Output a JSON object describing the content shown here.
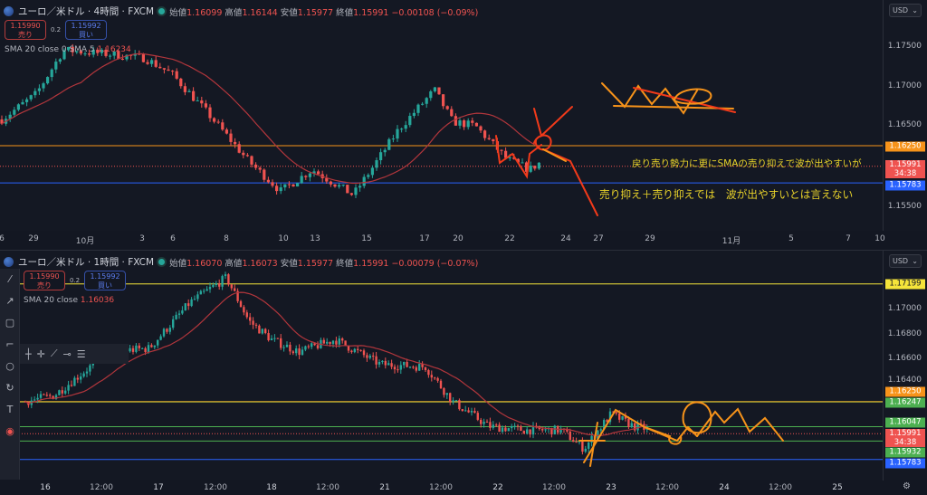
{
  "top_chart": {
    "symbol_title": "ユーロ／米ドル · 4時間 · FXCM",
    "ohlc": {
      "open_label": "始値",
      "open": "1.16099",
      "high_label": "高値",
      "high": "1.16144",
      "low_label": "安値",
      "low": "1.15977",
      "close_label": "終値",
      "close": "1.15991",
      "change": "−0.00108 (−0.09%)"
    },
    "sell": {
      "price": "1.15990",
      "label": "売り"
    },
    "spread": "0.2",
    "buy": {
      "price": "1.15992",
      "label": "買い"
    },
    "indicator": "SMA 20 close 0 SMA 5",
    "indicator_value": "1.16234",
    "currency": "USD",
    "price_ticks": [
      "1.17500",
      "1.17000",
      "1.16500",
      "1.15500"
    ],
    "price_labels": [
      {
        "value": "1.16250",
        "color": "#f7931a"
      },
      {
        "value": "1.15991",
        "sub": "34:38",
        "color": "#ef5350"
      },
      {
        "value": "1.15783",
        "color": "#2962ff"
      }
    ],
    "time_ticks": [
      "6",
      "29",
      "10月",
      "3",
      "6",
      "8",
      "10",
      "13",
      "15",
      "17",
      "20",
      "22",
      "24",
      "27",
      "29",
      "11月",
      "5",
      "7",
      "10"
    ],
    "notes": [
      "戻り売り勢力に更にSMAの売り抑えで波が出やすいが",
      "売り抑え＋売り抑えでは　波が出やすいとは言えない"
    ]
  },
  "bottom_chart": {
    "symbol_title": "ユーロ／米ドル · 1時間 · FXCM",
    "ohlc": {
      "open_label": "始値",
      "open": "1.16070",
      "high_label": "高値",
      "high": "1.16073",
      "low_label": "安値",
      "low": "1.15977",
      "close_label": "終値",
      "close": "1.15991",
      "change": "−0.00079 (−0.07%)"
    },
    "sell": {
      "price": "1.15990",
      "label": "売り"
    },
    "spread": "0.2",
    "buy": {
      "price": "1.15992",
      "label": "買い"
    },
    "indicator": "SMA 20 close",
    "indicator_value": "1.16036",
    "currency": "USD",
    "price_ticks": [
      "1.17000",
      "1.16800",
      "1.16600",
      "1.16400"
    ],
    "price_labels": [
      {
        "value": "1.17199",
        "color": "#f5e43a"
      },
      {
        "value": "1.16250",
        "color": "#f7931a"
      },
      {
        "value": "1.16247",
        "color": "#4caf50"
      },
      {
        "value": "1.16047",
        "color": "#4caf50"
      },
      {
        "value": "1.15991",
        "sub": "34:38",
        "color": "#ef5350"
      },
      {
        "value": "1.15932",
        "color": "#4caf50"
      },
      {
        "value": "1.15783",
        "color": "#2962ff"
      }
    ],
    "time_ticks": [
      "16",
      "12:00",
      "17",
      "12:00",
      "18",
      "12:00",
      "21",
      "12:00",
      "22",
      "12:00",
      "23",
      "12:00",
      "24",
      "12:00",
      "25"
    ]
  },
  "colors": {
    "up": "#26a69a",
    "down": "#ef5350",
    "sma": "#b2363c",
    "drawing_orange": "#f7931a",
    "drawing_red": "#f23a1a"
  }
}
